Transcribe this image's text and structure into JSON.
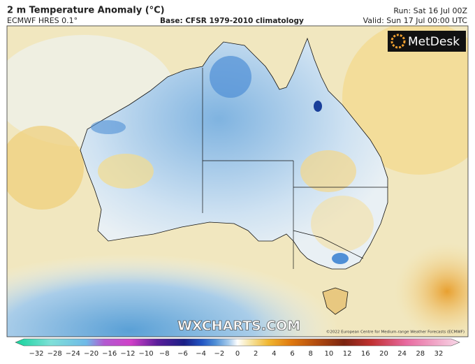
{
  "header": {
    "title": "2 m Temperature Anomaly (°C)",
    "subtitle": "ECMWF HRES 0.1°",
    "base": "Base: CFSR 1979-2010 climatology",
    "run": "Run: Sat 16 Jul 00Z",
    "valid": "Valid: Sun 17 Jul 00:00 UTC"
  },
  "map": {
    "logo": "MetDesk",
    "watermark": "WXCHARTS.COM",
    "copyright": "©2022 European Centre for Medium-range Weather Forecasts (ECMWF)"
  },
  "colorbar": {
    "labels": [
      "−32",
      "−28",
      "−24",
      "−20",
      "−16",
      "−12",
      "−10",
      "−8",
      "−6",
      "−4",
      "−2",
      "0",
      "2",
      "4",
      "6",
      "8",
      "10",
      "12",
      "16",
      "20",
      "24",
      "28",
      "32"
    ]
  }
}
